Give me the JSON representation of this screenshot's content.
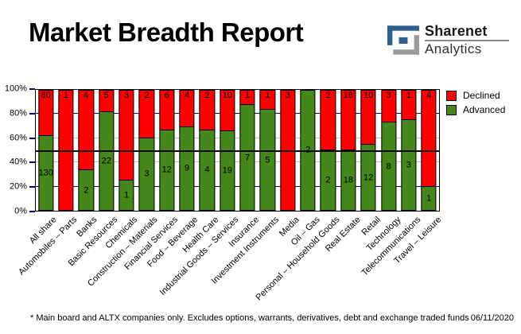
{
  "header": {
    "title": "Market Breadth Report"
  },
  "logo": {
    "name_top": "Sharenet",
    "name_bottom": "Analytics",
    "icon": "sharenet-square-s-icon",
    "blue": "#2d608c",
    "gray": "#9b9b9b"
  },
  "chart_data": {
    "type": "bar",
    "variant": "100%-stacked-column",
    "title": "Market Breadth Report",
    "categories": [
      "All share",
      "Automobiles – Parts",
      "Banks",
      "Basic Resources",
      "Chemicals",
      "Construction – Materials",
      "Financial Services",
      "Food – Beverage",
      "Health Care",
      "Industrial Goods – Services",
      "Insurance",
      "Investment Instruments",
      "Media",
      "Oil – Gas",
      "Personal – Household Goods",
      "Real Estate",
      "Retail",
      "Technology",
      "Telecommunications",
      "Travel – Leisure"
    ],
    "series": [
      {
        "name": "Declined",
        "color": "#fe0000",
        "values": [
          80,
          1,
          4,
          5,
          3,
          2,
          6,
          4,
          2,
          10,
          1,
          1,
          3,
          0,
          2,
          18,
          10,
          3,
          1,
          4
        ]
      },
      {
        "name": "Advanced",
        "color": "#45871b",
        "values": [
          130,
          0,
          2,
          22,
          1,
          3,
          12,
          9,
          4,
          19,
          7,
          5,
          0,
          2,
          2,
          18,
          12,
          8,
          3,
          1
        ]
      }
    ],
    "ylim": [
      0,
      100
    ],
    "y_tick_levels": [
      0,
      20,
      40,
      60,
      80,
      100
    ],
    "y_tick_labels": [
      "0%",
      "20%",
      "40%",
      "60%",
      "80%",
      "100%"
    ],
    "gridlines": {
      "navy_levels": [
        20,
        80
      ],
      "gray_levels": [
        40,
        60
      ],
      "navy_color": "#000080",
      "gray_color": "#c0c0c0",
      "reference_line_level": 50,
      "reference_line_color": "#000000"
    },
    "legend_position": "top-right",
    "data_labels": "counts shown inside segments"
  },
  "footer": {
    "note": "* Main board and ALTX companies only. Excludes options, warrants, derivatives, debt and exchange traded funds",
    "date": "06/11/2020"
  }
}
